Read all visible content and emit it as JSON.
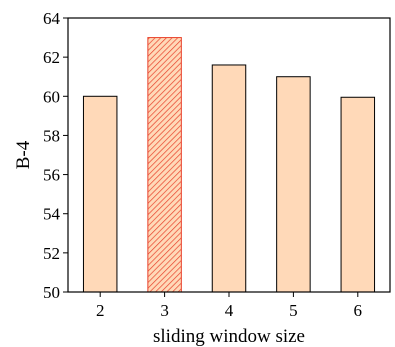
{
  "chart_data": {
    "type": "bar",
    "categories": [
      "2",
      "3",
      "4",
      "5",
      "6"
    ],
    "values": [
      60.0,
      63.0,
      61.6,
      61.0,
      59.95
    ],
    "highlight_index": 1,
    "xlabel": "sliding window size",
    "ylabel": "B-4",
    "ylim": [
      50,
      64
    ],
    "yticks": [
      50,
      52,
      54,
      56,
      58,
      60,
      62,
      64
    ],
    "grid": false,
    "colors": {
      "bar_fill": "#ffd9b8",
      "bar_edge": "#000000",
      "highlight_fill": "#ffd9b8",
      "highlight_edge": "#e8412a",
      "highlight_hatch": "#e8412a"
    }
  }
}
